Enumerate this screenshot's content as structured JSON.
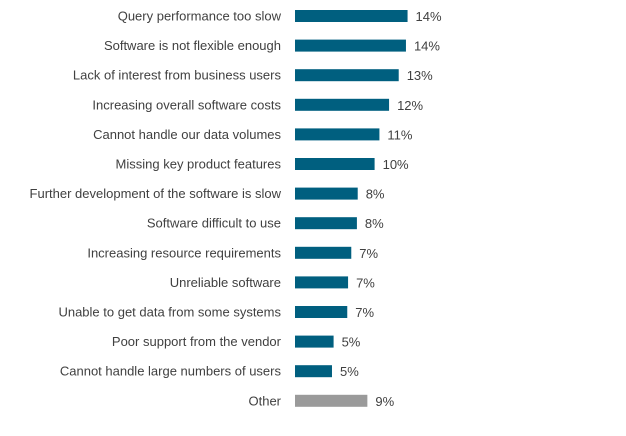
{
  "chart_data": {
    "type": "bar",
    "orientation": "horizontal",
    "title": "",
    "xlabel": "",
    "ylabel": "",
    "xlim": [
      0,
      14
    ],
    "grid": false,
    "legend": "none",
    "colors": {
      "main": "#005f7f",
      "other": "#9a9a9a"
    },
    "categories": [
      "Query performance too slow",
      "Software is not flexible enough",
      "Lack of interest from business users",
      "Increasing overall software costs",
      "Cannot handle our data volumes",
      "Missing key product features",
      "Further development of the software is slow",
      "Software difficult to use",
      "Increasing resource requirements",
      "Unreliable software",
      "Unable to get data from some systems",
      "Poor support from the vendor",
      "Cannot handle large numbers of users",
      "Other"
    ],
    "values": [
      14.0,
      13.8,
      12.9,
      11.7,
      10.5,
      9.9,
      7.8,
      7.7,
      7.0,
      6.6,
      6.5,
      4.8,
      4.6,
      9.0
    ],
    "labels": [
      "14%",
      "14%",
      "13%",
      "12%",
      "11%",
      "10%",
      "8%",
      "8%",
      "7%",
      "7%",
      "7%",
      "5%",
      "5%",
      "9%"
    ]
  }
}
